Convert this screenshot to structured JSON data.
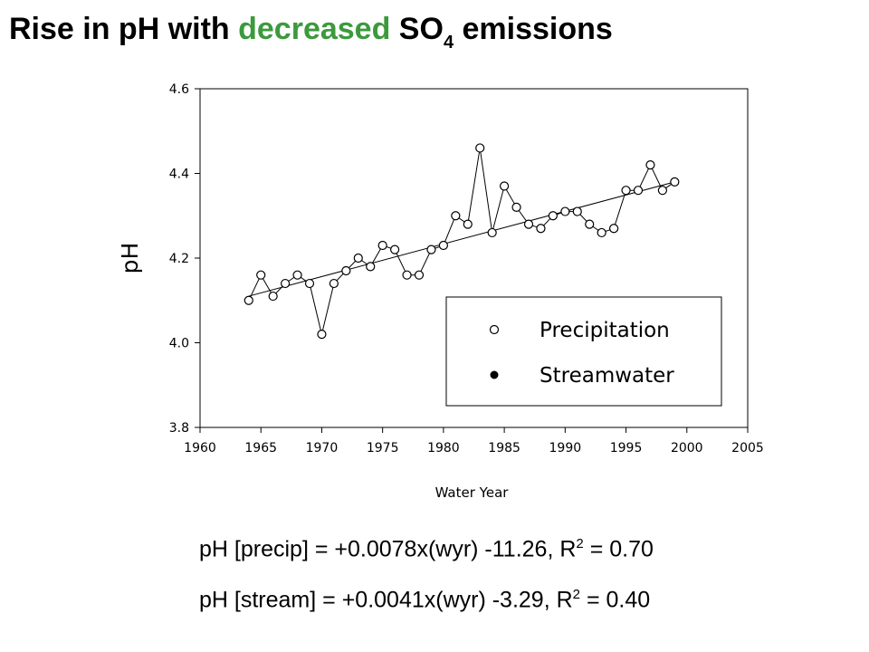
{
  "title": {
    "part1": "Rise in pH with ",
    "highlight": "decreased",
    "part2": " SO",
    "subscript": "4",
    "part3": " emissions",
    "highlight_color": "#3c9a3c"
  },
  "chart_data": {
    "type": "scatter",
    "xlabel": "Water Year",
    "ylabel": "pH",
    "xlim": [
      1960,
      2005
    ],
    "ylim": [
      3.8,
      4.6
    ],
    "xticks": [
      1960,
      1965,
      1970,
      1975,
      1980,
      1985,
      1990,
      1995,
      2000,
      2005
    ],
    "yticks": [
      "3.8",
      "4.0",
      "4.2",
      "4.4",
      "4.6"
    ],
    "grid": false,
    "legend_position": "lower-right",
    "series": [
      {
        "name": "Precipitation",
        "marker": "open-circle",
        "x": [
          1964,
          1965,
          1966,
          1967,
          1968,
          1969,
          1970,
          1971,
          1972,
          1973,
          1974,
          1975,
          1976,
          1977,
          1978,
          1979,
          1980,
          1981,
          1982,
          1983,
          1984,
          1985,
          1986,
          1987,
          1988,
          1989,
          1990,
          1991,
          1992,
          1993,
          1994,
          1995,
          1996,
          1997,
          1998,
          1999
        ],
        "y": [
          4.1,
          4.16,
          4.11,
          4.14,
          4.16,
          4.14,
          4.02,
          4.14,
          4.17,
          4.2,
          4.18,
          4.23,
          4.22,
          4.16,
          4.16,
          4.22,
          4.23,
          4.3,
          4.28,
          4.46,
          4.26,
          4.37,
          4.32,
          4.28,
          4.27,
          4.3,
          4.31,
          4.31,
          4.28,
          4.26,
          4.27,
          4.36,
          4.36,
          4.42,
          4.36,
          4.38
        ]
      },
      {
        "name": "Streamwater",
        "marker": "filled-circle",
        "x": [],
        "y": []
      }
    ],
    "trendline": {
      "x": [
        1964,
        1999
      ],
      "y": [
        4.11,
        4.38
      ]
    }
  },
  "equations": {
    "precip": {
      "text": "pH [precip] = +0.0078x(wyr) -11.26,  R",
      "sup": "2",
      "tail": " = 0.70"
    },
    "stream": {
      "text": "pH [stream] = +0.0041x(wyr) -3.29,  R",
      "sup": "2",
      "tail": " = 0.40"
    }
  }
}
